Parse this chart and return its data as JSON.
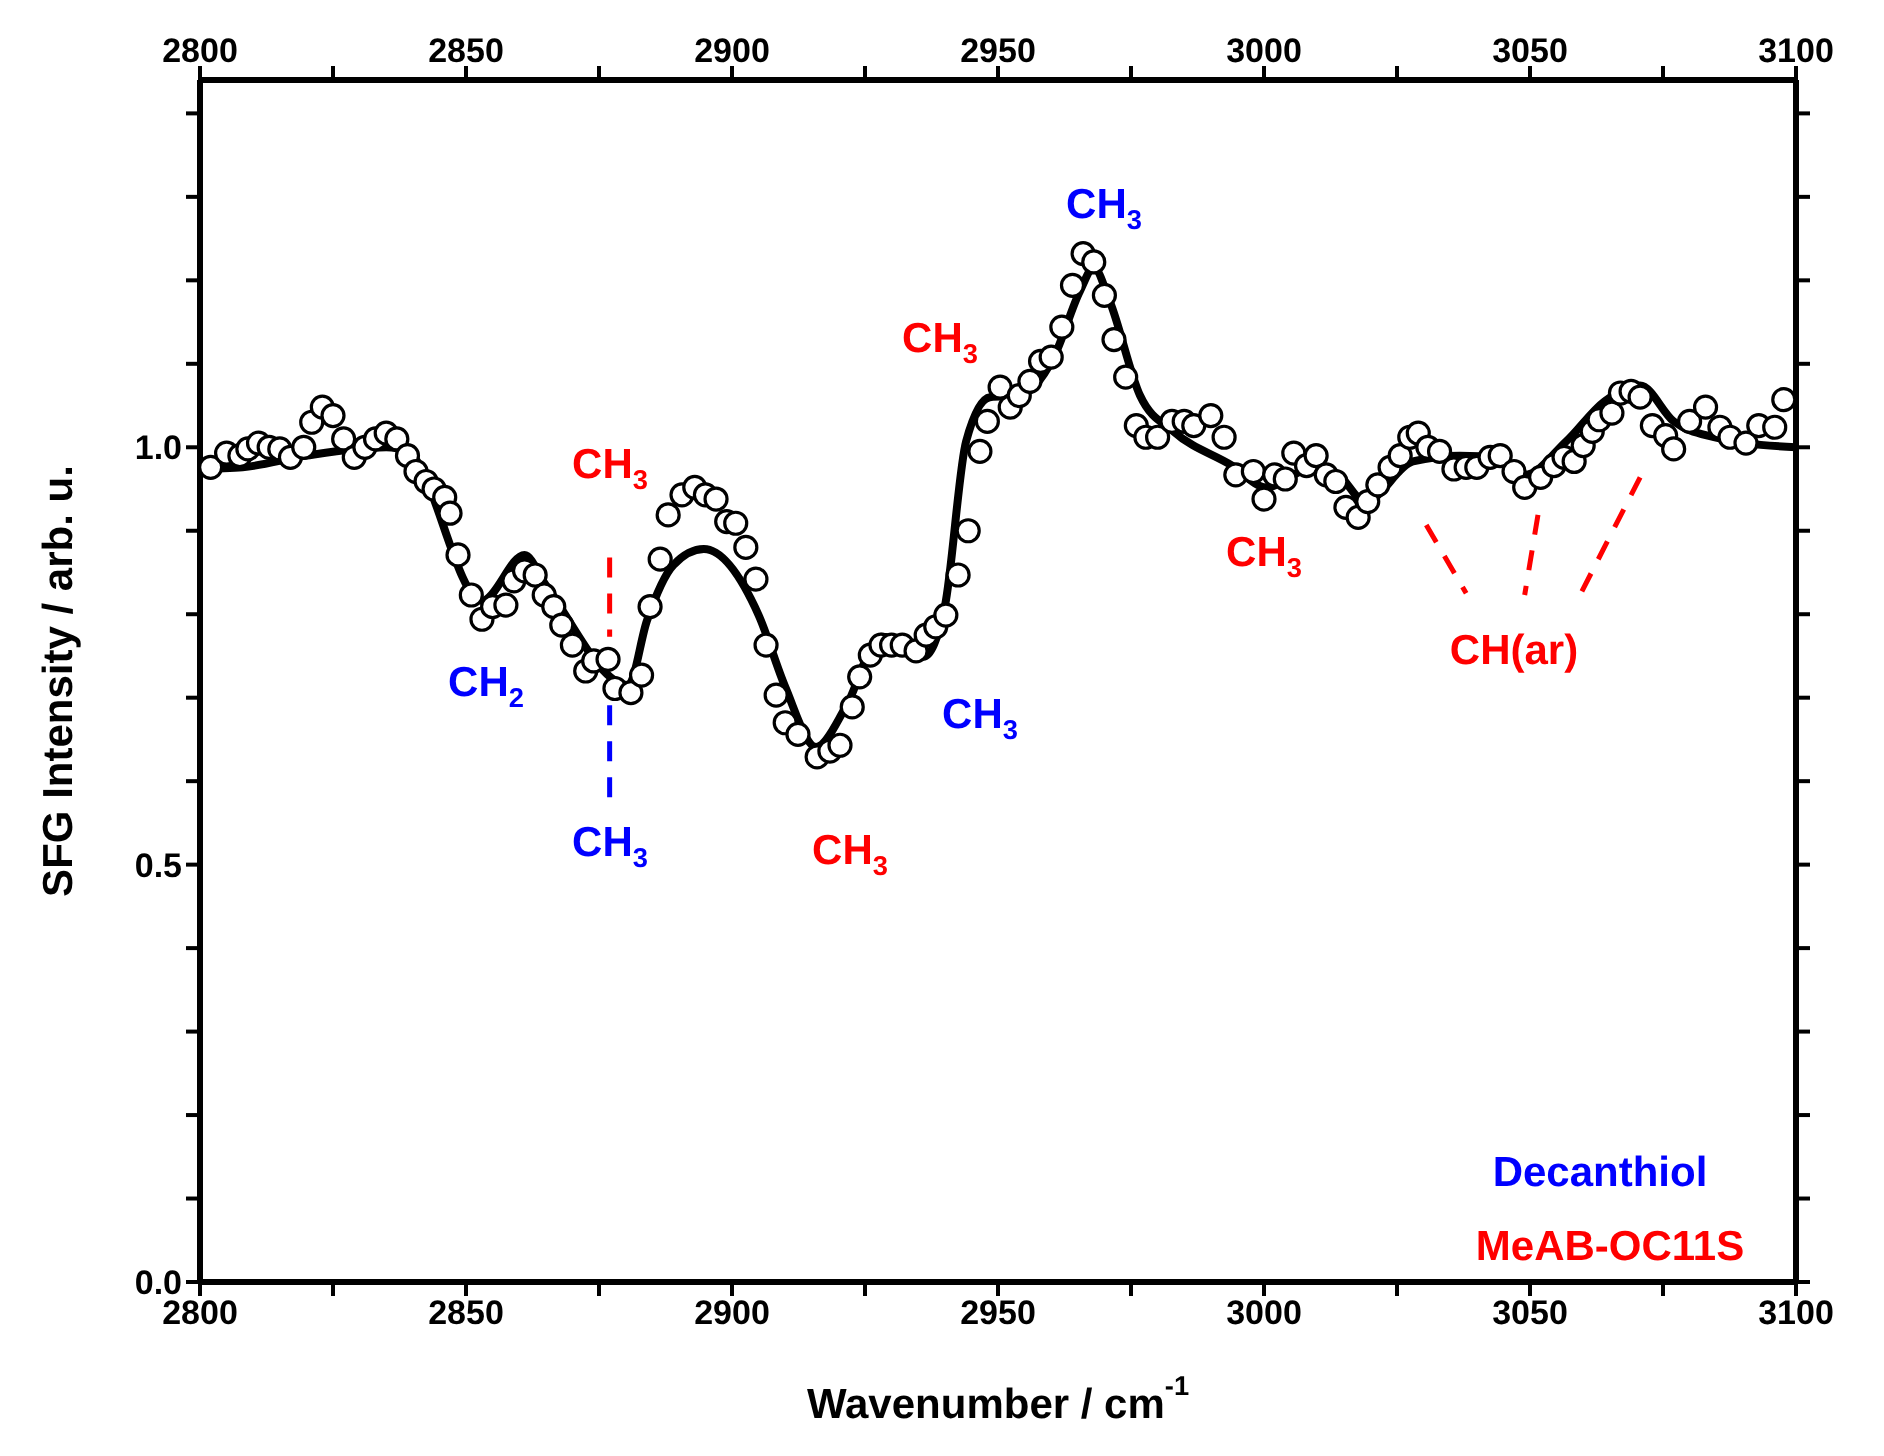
{
  "chart_data": {
    "type": "scatter",
    "xlabel": "Wavenumber /  cm$^{-1}$",
    "ylabel": "SFG Intensity /  arb. u.",
    "xlim": [
      2800,
      3100
    ],
    "xticks": [
      2800,
      {
        "value": 2825,
        "label": null
      },
      2850,
      {
        "value": 2875,
        "label": null
      },
      2900,
      {
        "value": 2925,
        "label": null
      },
      2950,
      {
        "value": 2975,
        "label": null
      },
      3000,
      {
        "value": 3025,
        "label": null
      },
      3050,
      {
        "value": 3075,
        "label": null
      },
      3100
    ],
    "x2lim": [
      2800,
      3100
    ],
    "x2ticks": [
      2800,
      {
        "value": 2825,
        "label": null
      },
      2850,
      {
        "value": 2875,
        "label": null
      },
      2900,
      {
        "value": 2925,
        "label": null
      },
      2950,
      {
        "value": 2975,
        "label": null
      },
      3000,
      {
        "value": 3025,
        "label": null
      },
      3050,
      {
        "value": 3075,
        "label": null
      },
      3100
    ],
    "ylim": [
      0,
      1.44
    ],
    "yticks": [
      {
        "value": 0,
        "label": "0.0"
      },
      {
        "value": 0.1,
        "label": null
      },
      {
        "value": 0.2,
        "label": null
      },
      {
        "value": 0.3,
        "label": null
      },
      {
        "value": 0.4,
        "label": null
      },
      0.5,
      {
        "value": 0.6,
        "label": null
      },
      {
        "value": 0.7,
        "label": null
      },
      {
        "value": 0.8,
        "label": null
      },
      {
        "value": 0.9,
        "label": null
      },
      {
        "value": 1,
        "label": "1.0"
      },
      {
        "value": 1.1,
        "label": null
      },
      {
        "value": 1.2,
        "label": null
      },
      {
        "value": 1.3,
        "label": null
      },
      {
        "value": 1.4,
        "label": null
      }
    ],
    "grid": false,
    "legend": false,
    "series": [
      {
        "marker": "circle",
        "color": "#000000",
        "x": [
          2802,
          2805,
          2807.5,
          2809,
          2811,
          2813,
          2815,
          2817,
          2819.5,
          2821,
          2823,
          2825,
          2827,
          2829,
          2831,
          2833,
          2835,
          2837,
          2839,
          2840.6,
          2842.5,
          2844,
          2846,
          2847,
          2848.5,
          2851,
          2853,
          2855,
          2857.5,
          2859,
          2861,
          2863,
          2864.7,
          2866.5,
          2868,
          2870,
          2872.5,
          2874,
          2876.7,
          2878,
          2881,
          2883,
          2884.6,
          2886.5,
          2888,
          2890.6,
          2893,
          2895,
          2897,
          2899,
          2900.7,
          2902.6,
          2904.5,
          2906.4,
          2908.3,
          2910,
          2912.4,
          2916,
          2918.4,
          2920.3,
          2922.6,
          2924,
          2926,
          2928,
          2930,
          2932,
          2934.6,
          2936.5,
          2938.3,
          2940.2,
          2942.5,
          2944.4,
          2946.6,
          2948,
          2950.4,
          2952.3,
          2954,
          2956,
          2958,
          2960,
          2962,
          2964,
          2966,
          2968,
          2970,
          2971.8,
          2974,
          2976,
          2977.8,
          2980,
          2982.7,
          2985,
          2986.8,
          2990,
          2992.5,
          2994.7,
          2998,
          3000,
          3002,
          3004,
          3005.6,
          3008,
          3009.8,
          3011.7,
          3013.5,
          3015.4,
          3017.7,
          3019.5,
          3021.4,
          3023.7,
          3025.6,
          3027.4,
          3029,
          3030.8,
          3033,
          3035.7,
          3038,
          3040,
          3042.5,
          3044.4,
          3047,
          3049,
          3052,
          3054.5,
          3056.4,
          3058.3,
          3060,
          3061.7,
          3063,
          3065.4,
          3067,
          3069,
          3070.7,
          3073,
          3075.5,
          3077,
          3080,
          3083,
          3085.7,
          3087.6,
          3090.6,
          3093,
          3096,
          3097.7
        ],
        "values": [
          0.976,
          0.993,
          0.99,
          0.998,
          1.005,
          1.0,
          0.998,
          0.988,
          1.0,
          1.03,
          1.048,
          1.038,
          1.01,
          0.988,
          1.0,
          1.01,
          1.017,
          1.01,
          0.99,
          0.971,
          0.959,
          0.95,
          0.94,
          0.921,
          0.871,
          0.823,
          0.794,
          0.809,
          0.811,
          0.84,
          0.852,
          0.847,
          0.823,
          0.809,
          0.787,
          0.763,
          0.732,
          0.744,
          0.746,
          0.711,
          0.706,
          0.727,
          0.809,
          0.866,
          0.919,
          0.943,
          0.952,
          0.943,
          0.938,
          0.911,
          0.909,
          0.88,
          0.842,
          0.763,
          0.703,
          0.67,
          0.656,
          0.629,
          0.636,
          0.643,
          0.689,
          0.725,
          0.751,
          0.763,
          0.763,
          0.763,
          0.756,
          0.775,
          0.785,
          0.799,
          0.847,
          0.9,
          0.995,
          1.031,
          1.072,
          1.048,
          1.062,
          1.079,
          1.103,
          1.108,
          1.144,
          1.194,
          1.232,
          1.222,
          1.182,
          1.129,
          1.084,
          1.026,
          1.012,
          1.012,
          1.031,
          1.031,
          1.026,
          1.038,
          1.012,
          0.967,
          0.971,
          0.938,
          0.967,
          0.962,
          0.993,
          0.978,
          0.99,
          0.967,
          0.959,
          0.928,
          0.916,
          0.935,
          0.955,
          0.976,
          0.99,
          1.012,
          1.017,
          1.0,
          0.995,
          0.974,
          0.976,
          0.976,
          0.988,
          0.99,
          0.971,
          0.952,
          0.964,
          0.978,
          0.988,
          0.983,
          1.002,
          1.019,
          1.033,
          1.041,
          1.065,
          1.067,
          1.06,
          1.026,
          1.014,
          0.998,
          1.031,
          1.048,
          1.024,
          1.012,
          1.005,
          1.026,
          1.024,
          1.057
        ]
      },
      {
        "type": "line",
        "color": "#000000",
        "x": [
          2800,
          2801,
          2808,
          2820,
          2835,
          2839,
          2853,
          2861,
          2865,
          2880.5,
          2884,
          2889,
          2894.7,
          2905,
          2910,
          2915.8,
          2921.4,
          2928,
          2931.6,
          2936,
          2940,
          2944,
          2948.5,
          2954,
          2960.5,
          2965.4,
          2968,
          2971,
          2976.7,
          2983,
          2994,
          3000.4,
          3009.4,
          3014,
          3019,
          3028,
          3036.8,
          3044.4,
          3049,
          3056.8,
          3064,
          3070.7,
          3077,
          3084.6,
          3090.6,
          3100
        ],
        "values": [
          0.97,
          0.974,
          0.976,
          0.99,
          1.0,
          0.995,
          0.816,
          0.871,
          0.835,
          0.715,
          0.792,
          0.859,
          0.878,
          0.799,
          0.713,
          0.641,
          0.689,
          0.773,
          0.768,
          0.749,
          0.809,
          1.007,
          1.06,
          1.062,
          1.108,
          1.187,
          1.215,
          1.175,
          1.062,
          1.019,
          0.978,
          0.952,
          0.976,
          0.967,
          0.935,
          0.983,
          0.99,
          0.988,
          0.967,
          1.007,
          1.055,
          1.074,
          1.031,
          1.012,
          1.005,
          1.0
        ]
      },
      {
        "type": "line",
        "line_style": "dashed",
        "color": "#ff0000",
        "x": [
          2877,
          2877
        ],
        "values": [
          0.868,
          0.773
        ]
      },
      {
        "type": "line",
        "line_style": "dashed",
        "color": "#ff0000",
        "x": [
          3030.5,
          3038
        ],
        "values": [
          0.907,
          0.825
        ]
      },
      {
        "type": "line",
        "line_style": "dashed",
        "color": "#ff0000",
        "x": [
          3051.5,
          3049
        ],
        "values": [
          0.919,
          0.823
        ]
      },
      {
        "type": "line",
        "line_style": "dashed",
        "color": "#ff0000",
        "x": [
          3070.7,
          3059.4
        ],
        "values": [
          0.964,
          0.823
        ]
      },
      {
        "type": "line",
        "line_style": "dashed",
        "color": "#0000ff",
        "x": [
          2877,
          2877
        ],
        "values": [
          0.691,
          0.577
        ]
      }
    ],
    "annotations": [
      "CH$_{2}$",
      "CH$_{3}$",
      "CH$_{3}$",
      "CH$_{3}$",
      "CH$_{3}$",
      "CH$_{3}$",
      "CH$_{3}$",
      "CH$_{3}$",
      "CH(ar)",
      "Decanthiol",
      "MeAB-OC11S"
    ]
  }
}
